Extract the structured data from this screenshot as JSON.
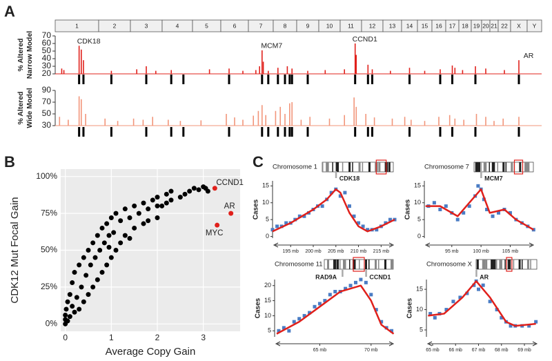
{
  "chart_data": [
    {
      "type": "genome",
      "panel": "A",
      "chromosomes": [
        "1",
        "2",
        "3",
        "4",
        "5",
        "6",
        "7",
        "8",
        "9",
        "10",
        "11",
        "12",
        "13",
        "14",
        "15",
        "16",
        "17",
        "18",
        "19",
        "20",
        "21",
        "22",
        "X",
        "Y"
      ],
      "regions": [
        1.55,
        1.65,
        2.4,
        3.5,
        4.3,
        4.7,
        6.3,
        7.55,
        7.8,
        8.2,
        8.5,
        8.7,
        8.8,
        9.5,
        11.7,
        12.3,
        12.5,
        14.5,
        16.6,
        17.5,
        19.4,
        23.5
      ],
      "tracks": [
        {
          "ylabel": [
            "% Altered",
            "Narrow Model"
          ],
          "color": "#e0201b",
          "ylim": [
            20,
            70
          ],
          "yticks": [
            20,
            30,
            40,
            50,
            60,
            70
          ],
          "x": [
            1.15,
            1.2,
            1.55,
            1.6,
            1.65,
            2.4,
            3.2,
            3.5,
            3.8,
            4.3,
            5.6,
            6.3,
            6.8,
            7.3,
            7.45,
            7.55,
            7.6,
            7.8,
            8.2,
            8.6,
            8.8,
            9.5,
            10.3,
            11.2,
            11.7,
            11.75,
            12.3,
            12.5,
            13.4,
            14.5,
            15.5,
            16.6,
            17.5,
            17.7,
            18.3,
            19.4,
            20.5,
            22.5,
            23.5
          ],
          "values": [
            27,
            25,
            57,
            52,
            38,
            24,
            26,
            30,
            24,
            25,
            26,
            27,
            24,
            25,
            30,
            51,
            36,
            24,
            28,
            30,
            27,
            24,
            25,
            26,
            60,
            45,
            32,
            26,
            24,
            28,
            24,
            26,
            31,
            28,
            25,
            30,
            27,
            25,
            38
          ],
          "annotations": [
            {
              "text": "CDK18",
              "x": 1.55,
              "y": 57
            },
            {
              "text": "MCM7",
              "x": 7.55,
              "y": 51
            },
            {
              "text": "CCND1",
              "x": 11.7,
              "y": 60
            },
            {
              "text": "AR",
              "x": 23.5,
              "y": 38
            }
          ]
        },
        {
          "ylabel": [
            "% Altered",
            "Wide Model"
          ],
          "color": "#f2957a",
          "ylim": [
            30,
            90
          ],
          "yticks": [
            30,
            50,
            70,
            90
          ],
          "x": [
            1.1,
            1.3,
            1.55,
            1.6,
            1.7,
            2.2,
            2.6,
            3.1,
            3.4,
            3.7,
            4.2,
            4.6,
            5.3,
            6.2,
            6.5,
            6.8,
            7.2,
            7.4,
            7.55,
            7.7,
            8.1,
            8.3,
            8.5,
            8.7,
            8.8,
            9.2,
            9.6,
            10.5,
            11.2,
            11.65,
            11.75,
            12.2,
            12.6,
            13.5,
            14.2,
            14.6,
            15.5,
            16.5,
            17.3,
            17.7,
            18.4,
            19.5,
            20.5,
            21.5,
            22.4,
            23.5
          ],
          "values": [
            45,
            40,
            80,
            75,
            50,
            42,
            38,
            42,
            40,
            45,
            40,
            38,
            39,
            50,
            44,
            40,
            47,
            55,
            65,
            48,
            55,
            62,
            50,
            68,
            70,
            40,
            45,
            42,
            48,
            78,
            62,
            50,
            44,
            42,
            45,
            40,
            38,
            45,
            48,
            42,
            40,
            50,
            45,
            38,
            42,
            45
          ]
        }
      ]
    },
    {
      "type": "scatter",
      "panel": "B",
      "xlabel": "Average Copy Gain",
      "ylabel": "CDK12 Mut Focal Gain",
      "xlim": [
        -0.1,
        3.8
      ],
      "xticks": [
        0,
        1,
        2,
        3
      ],
      "ylim": [
        -5,
        105
      ],
      "yticks": [
        {
          "value": 0,
          "label": "0%"
        },
        {
          "value": 25,
          "label": "25%"
        },
        {
          "value": 50,
          "label": "50%"
        },
        {
          "value": 75,
          "label": "75%"
        },
        {
          "value": 100,
          "label": "100%"
        }
      ],
      "grid": true,
      "color": "#000000",
      "x": [
        0,
        0,
        0,
        0.02,
        0.05,
        0.05,
        0.1,
        0.1,
        0.15,
        0.15,
        0.2,
        0.2,
        0.25,
        0.3,
        0.3,
        0.35,
        0.4,
        0.4,
        0.45,
        0.5,
        0.5,
        0.55,
        0.6,
        0.6,
        0.65,
        0.7,
        0.7,
        0.75,
        0.8,
        0.8,
        0.85,
        0.9,
        0.9,
        0.95,
        1.0,
        1.0,
        1.05,
        1.1,
        1.1,
        1.2,
        1.2,
        1.3,
        1.3,
        1.4,
        1.5,
        1.5,
        1.6,
        1.7,
        1.7,
        1.8,
        1.9,
        2.0,
        2.0,
        2.1,
        2.2,
        2.2,
        2.3,
        2.3,
        2.5,
        2.6,
        2.7,
        2.8,
        2.9,
        3.0,
        3.05,
        3.1,
        2.0,
        1.8,
        1.4,
        0.95
      ],
      "values": [
        0,
        3,
        6,
        10,
        2,
        15,
        5,
        20,
        12,
        28,
        8,
        35,
        18,
        40,
        10,
        25,
        45,
        15,
        33,
        50,
        20,
        40,
        55,
        25,
        45,
        60,
        30,
        50,
        65,
        35,
        55,
        68,
        40,
        60,
        72,
        45,
        62,
        75,
        50,
        70,
        55,
        78,
        60,
        72,
        80,
        65,
        75,
        82,
        68,
        78,
        84,
        86,
        72,
        80,
        88,
        82,
        90,
        84,
        86,
        88,
        90,
        92,
        91,
        93,
        92,
        90,
        80,
        70,
        58,
        52
      ],
      "highlights": {
        "color": "#e0201b",
        "labels": [
          "CCND1",
          "AR",
          "MYC"
        ],
        "x": [
          3.25,
          3.6,
          3.3
        ],
        "values": [
          92,
          75,
          67
        ]
      }
    },
    {
      "type": "line",
      "panel": "C",
      "title": "Chromosome 1",
      "ylabel": "Cases",
      "genes": [
        {
          "label": "CDK18",
          "x": 205
        }
      ],
      "xlim": [
        191,
        218
      ],
      "xticks": [
        {
          "value": 195,
          "label": "195 mb"
        },
        {
          "value": 200,
          "label": "200 mb"
        },
        {
          "value": 205,
          "label": "205 mb"
        },
        {
          "value": 210,
          "label": "210 mb"
        },
        {
          "value": 215,
          "label": "215 mb"
        }
      ],
      "ylim": [
        -0.5,
        16.5
      ],
      "yticks": [
        0,
        5,
        10,
        15
      ],
      "points": {
        "color": "#4a7cc4",
        "x": [
          191,
          192,
          193,
          194,
          195,
          196,
          197,
          198,
          199,
          200,
          201,
          202,
          203,
          204,
          205,
          206,
          207,
          208,
          209,
          210,
          211,
          212,
          213,
          214,
          215,
          216,
          217,
          218
        ],
        "values": [
          2,
          3,
          3,
          4,
          4,
          5,
          6,
          6,
          7,
          8,
          9,
          9,
          11,
          13,
          14,
          12,
          13,
          9,
          6,
          4,
          3,
          2,
          2,
          2,
          3,
          4,
          5,
          5
        ]
      },
      "fit": {
        "color": "#e0201b",
        "x": [
          191,
          195,
          200,
          203,
          205,
          206,
          208,
          210,
          212,
          215,
          218
        ],
        "values": [
          1.5,
          4,
          8,
          11,
          14,
          13,
          7,
          3,
          1.5,
          3,
          5
        ]
      }
    },
    {
      "type": "line",
      "title": "Chromosome 7",
      "ylabel": "Cases",
      "genes": [
        {
          "label": "MCM7",
          "x": 100
        }
      ],
      "xlim": [
        90.3,
        109.2
      ],
      "xticks": [
        {
          "value": 95,
          "label": "95 mb"
        },
        {
          "value": 100,
          "label": "100 mb"
        },
        {
          "value": 105,
          "label": "105 mb"
        }
      ],
      "ylim": [
        -0.5,
        16.5
      ],
      "yticks": [
        0,
        5,
        10,
        15
      ],
      "points": {
        "color": "#4a7cc4",
        "x": [
          91,
          92,
          93,
          94,
          95,
          96,
          97,
          98,
          99,
          99.5,
          100,
          100.5,
          101,
          102,
          103,
          104,
          105,
          106,
          107,
          108,
          109
        ],
        "values": [
          9,
          10,
          8,
          9,
          7,
          5,
          7,
          9,
          12,
          15,
          14,
          11,
          8,
          6,
          7,
          8,
          7,
          5,
          4,
          3,
          2
        ]
      },
      "fit": {
        "color": "#e0201b",
        "x": [
          90.5,
          93,
          96,
          98,
          100,
          101.5,
          104,
          106,
          109
        ],
        "values": [
          9,
          9,
          6,
          10,
          14,
          7,
          8,
          5,
          2
        ]
      }
    },
    {
      "type": "line",
      "title": "Chromosome 11",
      "ylabel": "Cases",
      "genes": [
        {
          "label": "RAD9A",
          "x": 67.2
        },
        {
          "label": "CCND1",
          "x": 69.5
        }
      ],
      "xlim": [
        60.6,
        72.3
      ],
      "xticks": [
        {
          "value": 65,
          "label": "65 mb"
        },
        {
          "value": 70,
          "label": "70 mb"
        }
      ],
      "ylim": [
        3,
        22
      ],
      "yticks": [
        5,
        10,
        15,
        20
      ],
      "points": {
        "color": "#4a7cc4",
        "x": [
          61,
          61.5,
          62,
          62.5,
          63,
          63.5,
          64,
          64.5,
          65,
          65.5,
          66,
          66.5,
          67,
          67.5,
          68,
          68.5,
          69,
          69.5,
          70,
          70.5,
          71,
          71.5,
          72
        ],
        "values": [
          5,
          6,
          5,
          8,
          9,
          10,
          11,
          13,
          14,
          15,
          17,
          18,
          18,
          19,
          20,
          21,
          22,
          21,
          17,
          12,
          8,
          6,
          5
        ]
      },
      "fit": {
        "color": "#e0201b",
        "x": [
          60.8,
          63,
          65,
          67,
          69,
          70,
          71,
          72.2
        ],
        "values": [
          4,
          8,
          13,
          18,
          20,
          15,
          7,
          4
        ]
      }
    },
    {
      "type": "line",
      "title": "Chromosome X",
      "ylabel": "Cases",
      "genes": [
        {
          "label": "AR",
          "x": 66.9
        }
      ],
      "xlim": [
        64.73,
        69.6
      ],
      "xticks": [
        {
          "value": 65,
          "label": "65 mb"
        },
        {
          "value": 66,
          "label": "66 mb"
        },
        {
          "value": 67,
          "label": "67 mb"
        },
        {
          "value": 68,
          "label": "68 mb"
        },
        {
          "value": 69,
          "label": "69 mb"
        }
      ],
      "ylim": [
        3.3,
        17.4
      ],
      "yticks": [
        5,
        10,
        15
      ],
      "points": {
        "color": "#4a7cc4",
        "x": [
          64.9,
          65.1,
          65.3,
          65.6,
          65.9,
          66.2,
          66.5,
          66.8,
          66.9,
          67,
          67.2,
          67.5,
          67.8,
          68,
          68.2,
          68.4,
          68.6,
          68.9,
          69.2,
          69.5
        ],
        "values": [
          9,
          8,
          9,
          10,
          12,
          13,
          14,
          16,
          17,
          15,
          16,
          12,
          10,
          8,
          7,
          6,
          6,
          6,
          6,
          7
        ]
      },
      "fit": {
        "color": "#e0201b",
        "x": [
          64.8,
          65.5,
          66.3,
          66.9,
          67.5,
          68.2,
          68.6,
          69.5
        ],
        "values": [
          8.5,
          9,
          13,
          17,
          13,
          7,
          6,
          6.5
        ]
      }
    }
  ]
}
